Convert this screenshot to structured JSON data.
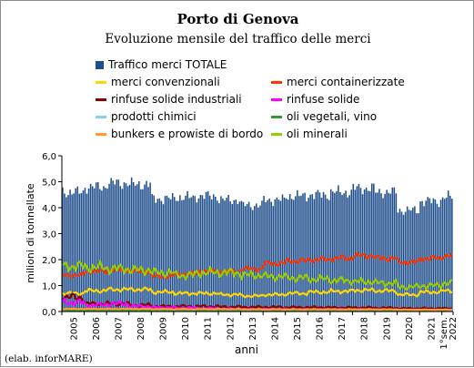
{
  "chart_data": {
    "type": "bar",
    "title": "Porto di Genova",
    "subtitle": "Evoluzione mensile del traffico delle merci",
    "xlabel": "anni",
    "ylabel": "milioni di tonnellate",
    "ylim": [
      0,
      6
    ],
    "yticks": [
      "0,0",
      "1,0",
      "2,0",
      "3,0",
      "4,0",
      "5,0",
      "6,0"
    ],
    "grid": false,
    "legend_position": "top",
    "x_ticks": [
      "2005",
      "2006",
      "2007",
      "2008",
      "2009",
      "2010",
      "2011",
      "2012",
      "2013",
      "2014",
      "2015",
      "2016",
      "2017",
      "2018",
      "2019",
      "2020",
      "2021",
      "1°sem. 2022"
    ],
    "period": {
      "start": "2005-01",
      "end": "2022-06",
      "frequency": "monthly"
    },
    "series": [
      {
        "name": "Traffico merci TOTALE",
        "kind": "bar",
        "color": "#1f4e8c",
        "annual_levels": [
          4.6,
          4.8,
          4.95,
          4.9,
          4.35,
          4.4,
          4.45,
          4.3,
          4.1,
          4.3,
          4.45,
          4.5,
          4.6,
          4.75,
          4.6,
          3.9,
          4.25,
          4.4
        ]
      },
      {
        "name": "merci convenzionali",
        "kind": "line",
        "color": "#ffd700",
        "annual_levels": [
          0.7,
          0.8,
          0.85,
          0.85,
          0.75,
          0.7,
          0.7,
          0.65,
          0.6,
          0.65,
          0.7,
          0.75,
          0.78,
          0.82,
          0.8,
          0.65,
          0.75,
          0.8
        ]
      },
      {
        "name": "merci containerizzate",
        "kind": "line",
        "color": "#ff3300",
        "annual_levels": [
          1.4,
          1.55,
          1.6,
          1.55,
          1.35,
          1.45,
          1.55,
          1.55,
          1.65,
          1.85,
          1.95,
          2.0,
          2.05,
          2.15,
          2.05,
          1.9,
          2.05,
          2.15
        ]
      },
      {
        "name": "rinfuse solide industriali",
        "kind": "line",
        "color": "#8b0000",
        "annual_levels": [
          0.55,
          0.3,
          0.3,
          0.25,
          0.2,
          0.2,
          0.2,
          0.18,
          0.17,
          0.17,
          0.16,
          0.16,
          0.15,
          0.15,
          0.14,
          0.12,
          0.12,
          0.12
        ]
      },
      {
        "name": "rinfuse solide",
        "kind": "line",
        "color": "#ff00ff",
        "annual_levels": [
          0.35,
          0.25,
          0.3,
          0.2,
          0.15,
          0.14,
          0.12,
          0.1,
          0.09,
          0.09,
          0.08,
          0.08,
          0.08,
          0.08,
          0.07,
          0.06,
          0.06,
          0.06
        ]
      },
      {
        "name": "prodotti chimici",
        "kind": "line",
        "color": "#87cefa",
        "annual_levels": [
          0.05,
          0.05,
          0.05,
          0.05,
          0.04,
          0.05,
          0.05,
          0.05,
          0.04,
          0.04,
          0.04,
          0.04,
          0.04,
          0.04,
          0.04,
          0.04,
          0.04,
          0.04
        ]
      },
      {
        "name": "oli vegetali, vino",
        "kind": "line",
        "color": "#339933",
        "annual_levels": [
          0.03,
          0.03,
          0.03,
          0.03,
          0.03,
          0.03,
          0.03,
          0.03,
          0.03,
          0.03,
          0.03,
          0.03,
          0.03,
          0.03,
          0.03,
          0.03,
          0.03,
          0.03
        ]
      },
      {
        "name": "bunkers e prowiste di bordo",
        "kind": "line",
        "color": "#ff9933",
        "annual_levels": [
          0.1,
          0.1,
          0.1,
          0.1,
          0.09,
          0.09,
          0.09,
          0.09,
          0.08,
          0.08,
          0.08,
          0.08,
          0.08,
          0.08,
          0.08,
          0.07,
          0.07,
          0.07
        ]
      },
      {
        "name": "oli minerali",
        "kind": "line",
        "color": "#99cc00",
        "annual_levels": [
          1.75,
          1.7,
          1.65,
          1.6,
          1.5,
          1.4,
          1.5,
          1.5,
          1.4,
          1.35,
          1.3,
          1.25,
          1.2,
          1.15,
          1.1,
          0.95,
          1.0,
          1.1
        ]
      }
    ]
  },
  "legend": [
    {
      "label": "Traffico merci TOTALE",
      "color": "#1f4e8c",
      "shape": "square"
    },
    {
      "label": "merci convenzionali",
      "color": "#ffd700",
      "shape": "line"
    },
    {
      "label": "merci containerizzate",
      "color": "#ff3300",
      "shape": "line"
    },
    {
      "label": "rinfuse solide industriali",
      "color": "#8b0000",
      "shape": "line"
    },
    {
      "label": "rinfuse solide",
      "color": "#ff00ff",
      "shape": "line"
    },
    {
      "label": "prodotti chimici",
      "color": "#87cefa",
      "shape": "line"
    },
    {
      "label": "oli vegetali, vino",
      "color": "#339933",
      "shape": "line"
    },
    {
      "label": "bunkers e prowiste di bordo",
      "color": "#ff9933",
      "shape": "line"
    },
    {
      "label": "oli minerali",
      "color": "#99cc00",
      "shape": "line"
    }
  ],
  "credit": "(elab. inforMARE)"
}
